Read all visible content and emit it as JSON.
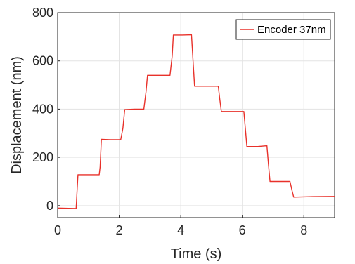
{
  "chart_data": {
    "type": "line",
    "title": "",
    "xlabel": "Time (s)",
    "ylabel": "Displacement (nm)",
    "xlim": [
      0,
      9
    ],
    "ylim": [
      -50,
      800
    ],
    "xticks": [
      0,
      2,
      4,
      6,
      8
    ],
    "yticks": [
      0,
      200,
      400,
      600,
      800
    ],
    "grid": true,
    "legend_position": "top-right",
    "series": [
      {
        "name": "Encoder 37nm",
        "color": "#e8312a",
        "x": [
          0.0,
          0.6,
          0.63,
          0.66,
          1.0,
          1.35,
          1.38,
          1.42,
          1.7,
          2.05,
          2.12,
          2.18,
          2.5,
          2.8,
          2.87,
          2.92,
          3.3,
          3.65,
          3.72,
          3.76,
          4.05,
          4.35,
          4.4,
          4.45,
          4.8,
          5.22,
          5.27,
          5.32,
          5.7,
          6.05,
          6.1,
          6.15,
          6.5,
          6.8,
          6.85,
          6.9,
          7.2,
          7.55,
          7.62,
          7.67,
          8.3,
          9.0
        ],
        "y": [
          -10,
          -12,
          60,
          128,
          128,
          128,
          160,
          275,
          273,
          273,
          320,
          398,
          400,
          400,
          470,
          540,
          540,
          540,
          620,
          707,
          707,
          708,
          600,
          495,
          495,
          495,
          440,
          390,
          390,
          390,
          320,
          245,
          245,
          248,
          170,
          100,
          100,
          100,
          60,
          35,
          37,
          38
        ]
      }
    ]
  }
}
